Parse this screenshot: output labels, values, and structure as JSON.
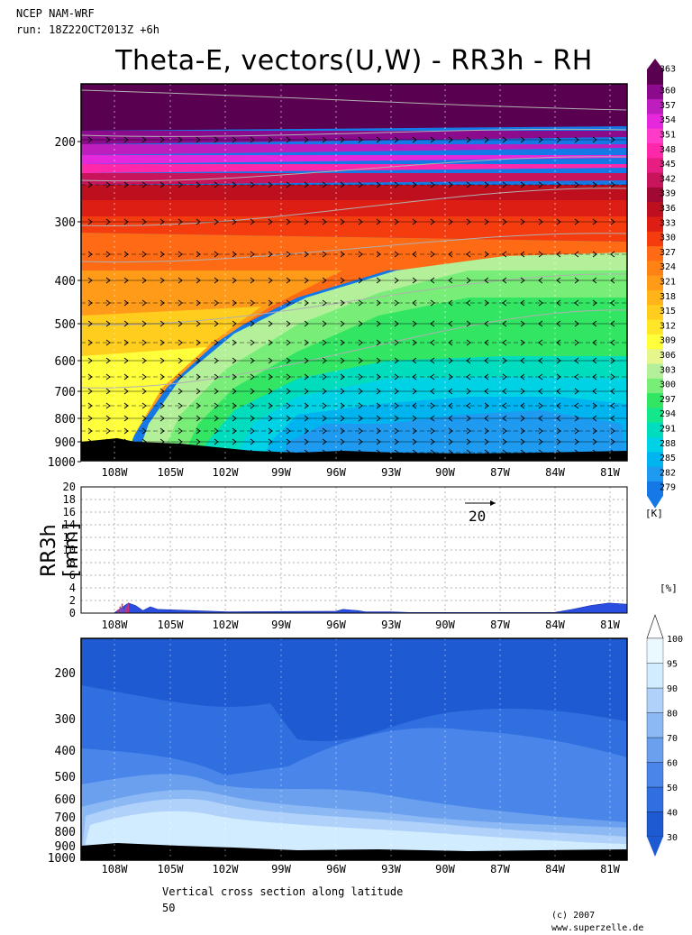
{
  "header": {
    "model": "NCEP NAM-WRF",
    "run": "run: 18Z22OCT2013Z +6h"
  },
  "title": "Theta-E, vectors(U,W) - RR3h - RH",
  "footer": {
    "caption": "Vertical cross section along latitude",
    "latitude": "50",
    "credit": "(c) 2007 www.superzelle.de"
  },
  "vector_scale": {
    "label": "20"
  },
  "chart_data": [
    {
      "type": "heatmap",
      "name": "theta_e_cross_section",
      "ylabel": "",
      "y_ticks": [
        "200",
        "300",
        "400",
        "500",
        "600",
        "700",
        "800",
        "900",
        "1000"
      ],
      "x_ticks": [
        "108W",
        "105W",
        "102W",
        "99W",
        "96W",
        "93W",
        "90W",
        "87W",
        "84W",
        "81W"
      ],
      "xlim": [
        -110,
        -80
      ],
      "ylim_hpa": [
        1000,
        100
      ],
      "colorbar": {
        "unit": "[K]",
        "levels": [
          279,
          282,
          285,
          288,
          291,
          294,
          297,
          300,
          303,
          306,
          309,
          312,
          315,
          318,
          321,
          324,
          327,
          330,
          333,
          336,
          339,
          342,
          345,
          348,
          351,
          354,
          357,
          360,
          363
        ],
        "colors": [
          "#1478e6",
          "#1e9bf0",
          "#00b4f0",
          "#00d2e6",
          "#00dcbe",
          "#14e68c",
          "#32e664",
          "#78ee78",
          "#b4f09a",
          "#e6f58c",
          "#ffff3c",
          "#ffe628",
          "#ffcd1e",
          "#ffb419",
          "#ff9b19",
          "#ff8214",
          "#ff6a14",
          "#f53c0f",
          "#dc1e14",
          "#be0f1e",
          "#a00a32",
          "#c8145a",
          "#e61e82",
          "#ff28aa",
          "#ff3cc8",
          "#e628dc",
          "#be1ebe",
          "#8c0a8c",
          "#5a0050"
        ]
      },
      "wind_vectors": "U,W"
    },
    {
      "type": "area",
      "name": "rr3h",
      "ylabel": "RR3h [mm]",
      "y_ticks": [
        "0",
        "2",
        "4",
        "6",
        "8",
        "10",
        "12",
        "14",
        "16",
        "18",
        "20"
      ],
      "ylim": [
        0,
        20
      ],
      "x_ticks": [
        "108W",
        "105W",
        "102W",
        "99W",
        "96W",
        "93W",
        "90W",
        "87W",
        "84W",
        "81W"
      ],
      "x": [
        -108.2,
        -107.8,
        -107.4,
        -107.0,
        -106.6,
        -106.2,
        -105.8,
        -102.0,
        -96.0,
        -95.6,
        -95.2,
        -94.8,
        -94.4,
        -93.0,
        -92.0,
        -84.0,
        -83.0,
        -82.0,
        -81.0,
        -80.0
      ],
      "values": [
        0,
        0.8,
        1.6,
        1.2,
        0.4,
        1.0,
        0.6,
        0.2,
        0.3,
        0.6,
        0.5,
        0.4,
        0.2,
        0.2,
        0.1,
        0.1,
        0.6,
        1.2,
        1.6,
        1.4
      ]
    },
    {
      "type": "heatmap",
      "name": "relative_humidity",
      "y_ticks": [
        "200",
        "300",
        "400",
        "500",
        "600",
        "700",
        "800",
        "900",
        "1000"
      ],
      "x_ticks": [
        "108W",
        "105W",
        "102W",
        "99W",
        "96W",
        "93W",
        "90W",
        "87W",
        "84W",
        "81W"
      ],
      "colorbar": {
        "unit": "[%]",
        "levels": [
          30,
          40,
          50,
          60,
          70,
          80,
          90,
          95,
          100
        ],
        "colors": [
          "#1e5ad2",
          "#2f6fe0",
          "#4a86ea",
          "#6aa0ee",
          "#8cb8f4",
          "#b0d2fa",
          "#d2ecff",
          "#eaf8ff"
        ]
      }
    }
  ]
}
